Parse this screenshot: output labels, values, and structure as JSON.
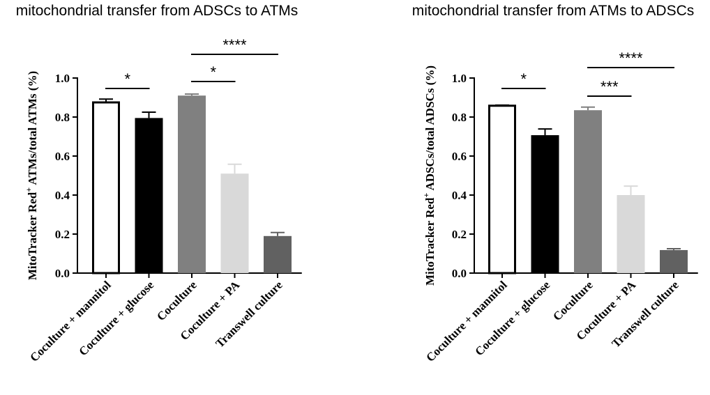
{
  "chart_data": [
    {
      "type": "bar",
      "title": "mitochondrial transfer from ADSCs to ATMs",
      "ylabel_parts": [
        "MitoTracker Red",
        "+",
        " ATMs/total ATMs (%)"
      ],
      "categories": [
        "Coculture + mannitol",
        "Coculture + glucose",
        "Coculture",
        "Coculture + PA",
        "Transwell culture"
      ],
      "values": [
        0.875,
        0.795,
        0.91,
        0.51,
        0.19
      ],
      "errors": [
        0.017,
        0.03,
        0.008,
        0.048,
        0.018
      ],
      "colors": [
        "#ffffff",
        "#000000",
        "#808080",
        "#d9d9d9",
        "#616161"
      ],
      "ylim": [
        0,
        1.0
      ],
      "yticks": [
        "0.0",
        "0.2",
        "0.4",
        "0.6",
        "0.8",
        "1.0"
      ],
      "significance": [
        {
          "from": 0,
          "to": 1,
          "label": "*"
        },
        {
          "from": 2,
          "to": 3,
          "label": "*"
        },
        {
          "from": 2,
          "to": 4,
          "label": "****"
        }
      ]
    },
    {
      "type": "bar",
      "title": "mitochondrial transfer from ATMs to ADSCs",
      "ylabel_parts": [
        "MitoTracker Red",
        "+",
        " ADSCs/total ADSCs (%)"
      ],
      "categories": [
        "Coculture + mannitol",
        "Coculture + glucose",
        "Coculture",
        "Coculture + PA",
        "Transwell culture"
      ],
      "values": [
        0.858,
        0.707,
        0.835,
        0.4,
        0.118
      ],
      "errors": [
        0.003,
        0.032,
        0.016,
        0.046,
        0.007
      ],
      "colors": [
        "#ffffff",
        "#000000",
        "#808080",
        "#d9d9d9",
        "#616161"
      ],
      "ylim": [
        0,
        1.0
      ],
      "yticks": [
        "0.0",
        "0.2",
        "0.4",
        "0.6",
        "0.8",
        "1.0"
      ],
      "significance": [
        {
          "from": 0,
          "to": 1,
          "label": "*"
        },
        {
          "from": 2,
          "to": 3,
          "label": "***"
        },
        {
          "from": 2,
          "to": 4,
          "label": "****"
        }
      ]
    }
  ]
}
